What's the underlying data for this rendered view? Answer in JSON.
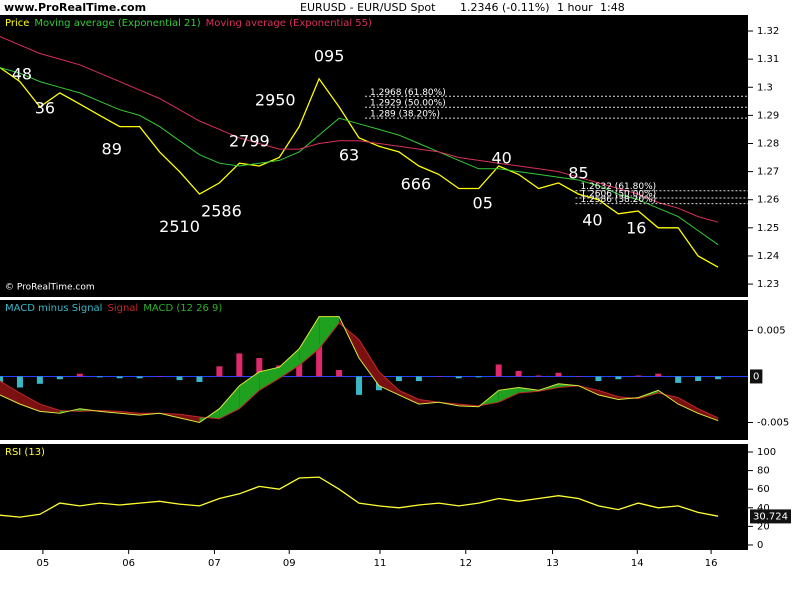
{
  "header": {
    "site": "www.ProRealTime.com",
    "instrument": "EURUSD - EUR/USD Spot",
    "quote": "1.2346 (-0.11%)",
    "interval": "1 hour",
    "time": "1:48",
    "copyright": "© ProRealTime.com"
  },
  "chart_data": [
    {
      "type": "line",
      "x": [
        0,
        2,
        4,
        6,
        8,
        10,
        12,
        14,
        16,
        18,
        20,
        22,
        24,
        26,
        28,
        30,
        32,
        34,
        36,
        38,
        40,
        42,
        44,
        46,
        48,
        50,
        52,
        54,
        56,
        58,
        60,
        62,
        64,
        66,
        68,
        70,
        72
      ],
      "xlim": [
        0,
        75
      ],
      "ylim": [
        1.2254,
        1.3257
      ],
      "yticks": [
        1.23,
        1.24,
        1.25,
        1.26,
        1.27,
        1.28,
        1.29,
        1.3,
        1.31,
        1.32
      ],
      "series": [
        {
          "name": "Price",
          "color": "#ffff00",
          "values": [
            1.307,
            1.302,
            1.293,
            1.298,
            1.294,
            1.29,
            1.286,
            1.286,
            1.277,
            1.27,
            1.262,
            1.266,
            1.273,
            1.272,
            1.275,
            1.286,
            1.303,
            1.293,
            1.282,
            1.279,
            1.277,
            1.272,
            1.269,
            1.264,
            1.264,
            1.272,
            1.269,
            1.264,
            1.266,
            1.262,
            1.26,
            1.255,
            1.256,
            1.25,
            1.25,
            1.24,
            1.236
          ]
        },
        {
          "name": "Moving average (Exponential 21)",
          "color": "#33cc33",
          "values": [
            1.307,
            1.305,
            1.302,
            1.3,
            1.298,
            1.295,
            1.292,
            1.29,
            1.286,
            1.281,
            1.276,
            1.273,
            1.272,
            1.273,
            1.274,
            1.277,
            1.283,
            1.289,
            1.287,
            1.285,
            1.283,
            1.28,
            1.277,
            1.274,
            1.271,
            1.271,
            1.27,
            1.269,
            1.268,
            1.267,
            1.265,
            1.262,
            1.26,
            1.257,
            1.254,
            1.249,
            1.244
          ]
        },
        {
          "name": "Moving average (Exponential 55)",
          "color": "#d8305a",
          "values": [
            1.318,
            1.315,
            1.312,
            1.31,
            1.308,
            1.305,
            1.302,
            1.299,
            1.296,
            1.292,
            1.288,
            1.285,
            1.282,
            1.28,
            1.278,
            1.278,
            1.28,
            1.281,
            1.281,
            1.28,
            1.279,
            1.278,
            1.277,
            1.275,
            1.274,
            1.273,
            1.272,
            1.271,
            1.27,
            1.268,
            1.266,
            1.264,
            1.262,
            1.259,
            1.257,
            1.254,
            1.252
          ]
        }
      ],
      "annotations": [
        {
          "text": "48",
          "x": 2.2,
          "y": 1.3043
        },
        {
          "text": "36",
          "x": 4.5,
          "y": 1.2922
        },
        {
          "text": "89",
          "x": 11.2,
          "y": 1.2777
        },
        {
          "text": "2510",
          "x": 18,
          "y": 1.2502
        },
        {
          "text": "2586",
          "x": 22.2,
          "y": 1.2556
        },
        {
          "text": "2799",
          "x": 25,
          "y": 1.2805
        },
        {
          "text": "2950",
          "x": 27.6,
          "y": 1.2951
        },
        {
          "text": "095",
          "x": 33,
          "y": 1.3107
        },
        {
          "text": "63",
          "x": 35,
          "y": 1.2755
        },
        {
          "text": "666",
          "x": 41.7,
          "y": 1.2652
        },
        {
          "text": "05",
          "x": 48.4,
          "y": 1.2584
        },
        {
          "text": "40",
          "x": 50.3,
          "y": 1.2744
        },
        {
          "text": "85",
          "x": 58,
          "y": 1.2691
        },
        {
          "text": "40",
          "x": 59.4,
          "y": 1.2524
        },
        {
          "text": "16",
          "x": 63.8,
          "y": 1.2495
        }
      ],
      "fib_levels": [
        {
          "label": "1.2968 (61.80%)",
          "value": 1.2968,
          "from": 36.6
        },
        {
          "label": "1.2929 (50.00%)",
          "value": 1.2929,
          "from": 36.6
        },
        {
          "label": "1.289 (38.20%)",
          "value": 1.289,
          "from": 36.6
        },
        {
          "label": "1.2632 (61.80%)",
          "value": 1.2632,
          "from": 57.7
        },
        {
          "label": "1.2606 (50.00%)",
          "value": 1.2606,
          "from": 57.7
        },
        {
          "label": "1.2586 (38.20%)",
          "value": 1.2586,
          "from": 57.7
        }
      ]
    },
    {
      "type": "macd",
      "x": [
        0,
        2,
        4,
        6,
        8,
        10,
        12,
        14,
        16,
        18,
        20,
        22,
        24,
        26,
        28,
        30,
        32,
        34,
        36,
        38,
        40,
        42,
        44,
        46,
        48,
        50,
        52,
        54,
        56,
        58,
        60,
        62,
        64,
        66,
        68,
        70,
        72
      ],
      "xlim": [
        0,
        75
      ],
      "ylim": [
        -0.0069,
        0.0083
      ],
      "yticks": [
        -0.005,
        0.005
      ],
      "last_value": 0,
      "zero_color": "#2244ff",
      "series": [
        {
          "name": "MACD minus Signal",
          "color": "#38b8c8",
          "up_color": "#e0286c",
          "values": [
            -0.0015,
            -0.0012,
            -0.0008,
            -0.0003,
            0.0003,
            -0.0001,
            -0.0002,
            -0.0002,
            0,
            -0.0004,
            -0.0006,
            0.0011,
            0.0025,
            0.002,
            0.0012,
            0.0018,
            0.0035,
            0.0007,
            -0.002,
            -0.0015,
            -0.0005,
            -0.0005,
            0,
            -0.0002,
            -0.0001,
            0.0013,
            0.0006,
            0.0001,
            0.0004,
            0,
            -0.0005,
            -0.0003,
            0.0001,
            0.0003,
            -0.0007,
            -0.0005,
            -0.0003
          ]
        },
        {
          "name": "Signal",
          "color": "#c02828",
          "values": [
            -0.0005,
            -0.0018,
            -0.003,
            -0.0037,
            -0.0038,
            -0.0037,
            -0.0038,
            -0.004,
            -0.004,
            -0.0041,
            -0.0044,
            -0.0046,
            -0.0035,
            -0.0015,
            -0.0002,
            0.0012,
            0.003,
            0.0058,
            0.004,
            0.0005,
            -0.0015,
            -0.0025,
            -0.0028,
            -0.003,
            -0.0032,
            -0.0028,
            -0.0018,
            -0.0016,
            -0.0012,
            -0.001,
            -0.0015,
            -0.0022,
            -0.0024,
            -0.0018,
            -0.0023,
            -0.0035,
            -0.0045
          ]
        },
        {
          "name": "MACD (12 26 9)",
          "color": "#2fb02f",
          "values": [
            -0.002,
            -0.003,
            -0.0038,
            -0.004,
            -0.0035,
            -0.0038,
            -0.004,
            -0.0042,
            -0.004,
            -0.0045,
            -0.005,
            -0.0035,
            -0.001,
            0.0005,
            0.001,
            0.003,
            0.0065,
            0.0065,
            0.002,
            -0.001,
            -0.002,
            -0.003,
            -0.0028,
            -0.0032,
            -0.0033,
            -0.0015,
            -0.0012,
            -0.0015,
            -0.0008,
            -0.001,
            -0.002,
            -0.0025,
            -0.0023,
            -0.0015,
            -0.003,
            -0.004,
            -0.0048
          ]
        }
      ]
    },
    {
      "type": "line",
      "x": [
        0,
        2,
        4,
        6,
        8,
        10,
        12,
        14,
        16,
        18,
        20,
        22,
        24,
        26,
        28,
        30,
        32,
        34,
        36,
        38,
        40,
        42,
        44,
        46,
        48,
        50,
        52,
        54,
        56,
        58,
        60,
        62,
        64,
        66,
        68,
        70,
        72
      ],
      "xlim": [
        0,
        75
      ],
      "ylim": [
        -5.4,
        108.6
      ],
      "yticks": [
        0,
        20,
        40,
        60,
        80,
        100
      ],
      "last_value": 30.724,
      "series": [
        {
          "name": "RSI (13)",
          "color": "#ffff33",
          "values": [
            32,
            30,
            33,
            45,
            42,
            45,
            43,
            45,
            47,
            44,
            42,
            50,
            55,
            63,
            60,
            72,
            73,
            60,
            45,
            42,
            40,
            43,
            45,
            42,
            45,
            50,
            47,
            50,
            53,
            50,
            42,
            38,
            45,
            40,
            42,
            35,
            31
          ]
        }
      ],
      "xticks": [
        {
          "value": 4.3,
          "label": "05"
        },
        {
          "value": 12.9,
          "label": "06"
        },
        {
          "value": 21.5,
          "label": "07"
        },
        {
          "value": 29,
          "label": "09"
        },
        {
          "value": 38.1,
          "label": "11"
        },
        {
          "value": 46.7,
          "label": "12"
        },
        {
          "value": 55.4,
          "label": "13"
        },
        {
          "value": 63.9,
          "label": "14"
        },
        {
          "value": 71.3,
          "label": "16"
        }
      ]
    }
  ]
}
